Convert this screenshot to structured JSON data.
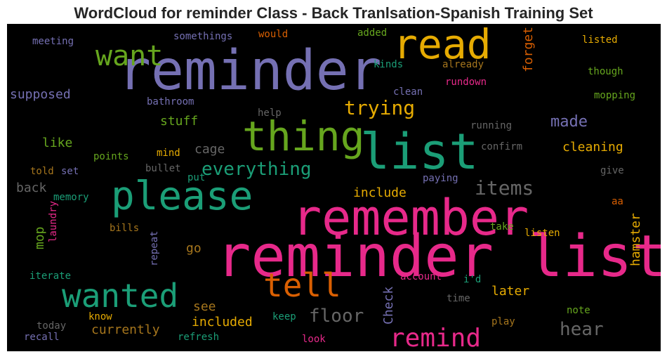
{
  "chart_data": {
    "type": "wordcloud",
    "title": "WordCloud for reminder Class - Back Tranlsation-Spanish Training Set",
    "colors": {
      "purple": "#7570b3",
      "green": "#1b9e77",
      "pink": "#e7298a",
      "orange": "#d95f02",
      "olive": "#66a61e",
      "gold": "#e6ab02",
      "brown": "#a6761d",
      "gray": "#666666"
    },
    "words": [
      {
        "text": "reminder list",
        "color": "pink"
      },
      {
        "text": "reminder",
        "color": "purple"
      },
      {
        "text": "remember",
        "color": "pink"
      },
      {
        "text": "list",
        "color": "green"
      },
      {
        "text": "read",
        "color": "gold"
      },
      {
        "text": "thing",
        "color": "olive"
      },
      {
        "text": "please",
        "color": "green"
      },
      {
        "text": "wanted",
        "color": "green"
      },
      {
        "text": "tell",
        "color": "orange"
      },
      {
        "text": "want",
        "color": "olive"
      },
      {
        "text": "remind",
        "color": "pink"
      },
      {
        "text": "items",
        "color": "gray"
      },
      {
        "text": "trying",
        "color": "gold"
      },
      {
        "text": "everything",
        "color": "green"
      },
      {
        "text": "floor",
        "color": "gray"
      },
      {
        "text": "hear",
        "color": "gray"
      },
      {
        "text": "made",
        "color": "purple"
      },
      {
        "text": "supposed",
        "color": "purple"
      },
      {
        "text": "cleaning",
        "color": "gold"
      },
      {
        "text": "stuff",
        "color": "olive"
      },
      {
        "text": "forget",
        "color": "orange"
      },
      {
        "text": "hamster",
        "color": "gold"
      },
      {
        "text": "included",
        "color": "gold"
      },
      {
        "text": "currently",
        "color": "brown"
      },
      {
        "text": "include",
        "color": "gold"
      },
      {
        "text": "later",
        "color": "gold"
      },
      {
        "text": "Check",
        "color": "purple"
      },
      {
        "text": "like",
        "color": "olive"
      },
      {
        "text": "cage",
        "color": "gray"
      },
      {
        "text": "back",
        "color": "gray"
      },
      {
        "text": "see",
        "color": "brown"
      },
      {
        "text": "go",
        "color": "brown"
      },
      {
        "text": "mop",
        "color": "olive"
      },
      {
        "text": "meeting",
        "color": "purple"
      },
      {
        "text": "somethings",
        "color": "purple"
      },
      {
        "text": "would",
        "color": "orange"
      },
      {
        "text": "added",
        "color": "olive"
      },
      {
        "text": "listed",
        "color": "gold"
      },
      {
        "text": "kinds",
        "color": "green"
      },
      {
        "text": "already",
        "color": "brown"
      },
      {
        "text": "though",
        "color": "olive"
      },
      {
        "text": "rundown",
        "color": "pink"
      },
      {
        "text": "clean",
        "color": "purple"
      },
      {
        "text": "mopping",
        "color": "olive"
      },
      {
        "text": "bathroom",
        "color": "purple"
      },
      {
        "text": "help",
        "color": "gray"
      },
      {
        "text": "running",
        "color": "gray"
      },
      {
        "text": "points",
        "color": "olive"
      },
      {
        "text": "mind",
        "color": "gold"
      },
      {
        "text": "confirm",
        "color": "gray"
      },
      {
        "text": "told",
        "color": "brown"
      },
      {
        "text": "set",
        "color": "purple"
      },
      {
        "text": "bullet",
        "color": "gray"
      },
      {
        "text": "put",
        "color": "green"
      },
      {
        "text": "paying",
        "color": "purple"
      },
      {
        "text": "give",
        "color": "gray"
      },
      {
        "text": "memory",
        "color": "green"
      },
      {
        "text": "laundry",
        "color": "pink"
      },
      {
        "text": "aa",
        "color": "orange"
      },
      {
        "text": "listen",
        "color": "gold"
      },
      {
        "text": "bills",
        "color": "brown"
      },
      {
        "text": "take",
        "color": "olive"
      },
      {
        "text": "repeat",
        "color": "purple"
      },
      {
        "text": "iterate",
        "color": "green"
      },
      {
        "text": "account",
        "color": "pink"
      },
      {
        "text": "i'd",
        "color": "green"
      },
      {
        "text": "time",
        "color": "gray"
      },
      {
        "text": "know",
        "color": "gold"
      },
      {
        "text": "keep",
        "color": "green"
      },
      {
        "text": "note",
        "color": "olive"
      },
      {
        "text": "today",
        "color": "gray"
      },
      {
        "text": "play",
        "color": "brown"
      },
      {
        "text": "recall",
        "color": "purple"
      },
      {
        "text": "refresh",
        "color": "green"
      },
      {
        "text": "look",
        "color": "pink"
      }
    ]
  }
}
